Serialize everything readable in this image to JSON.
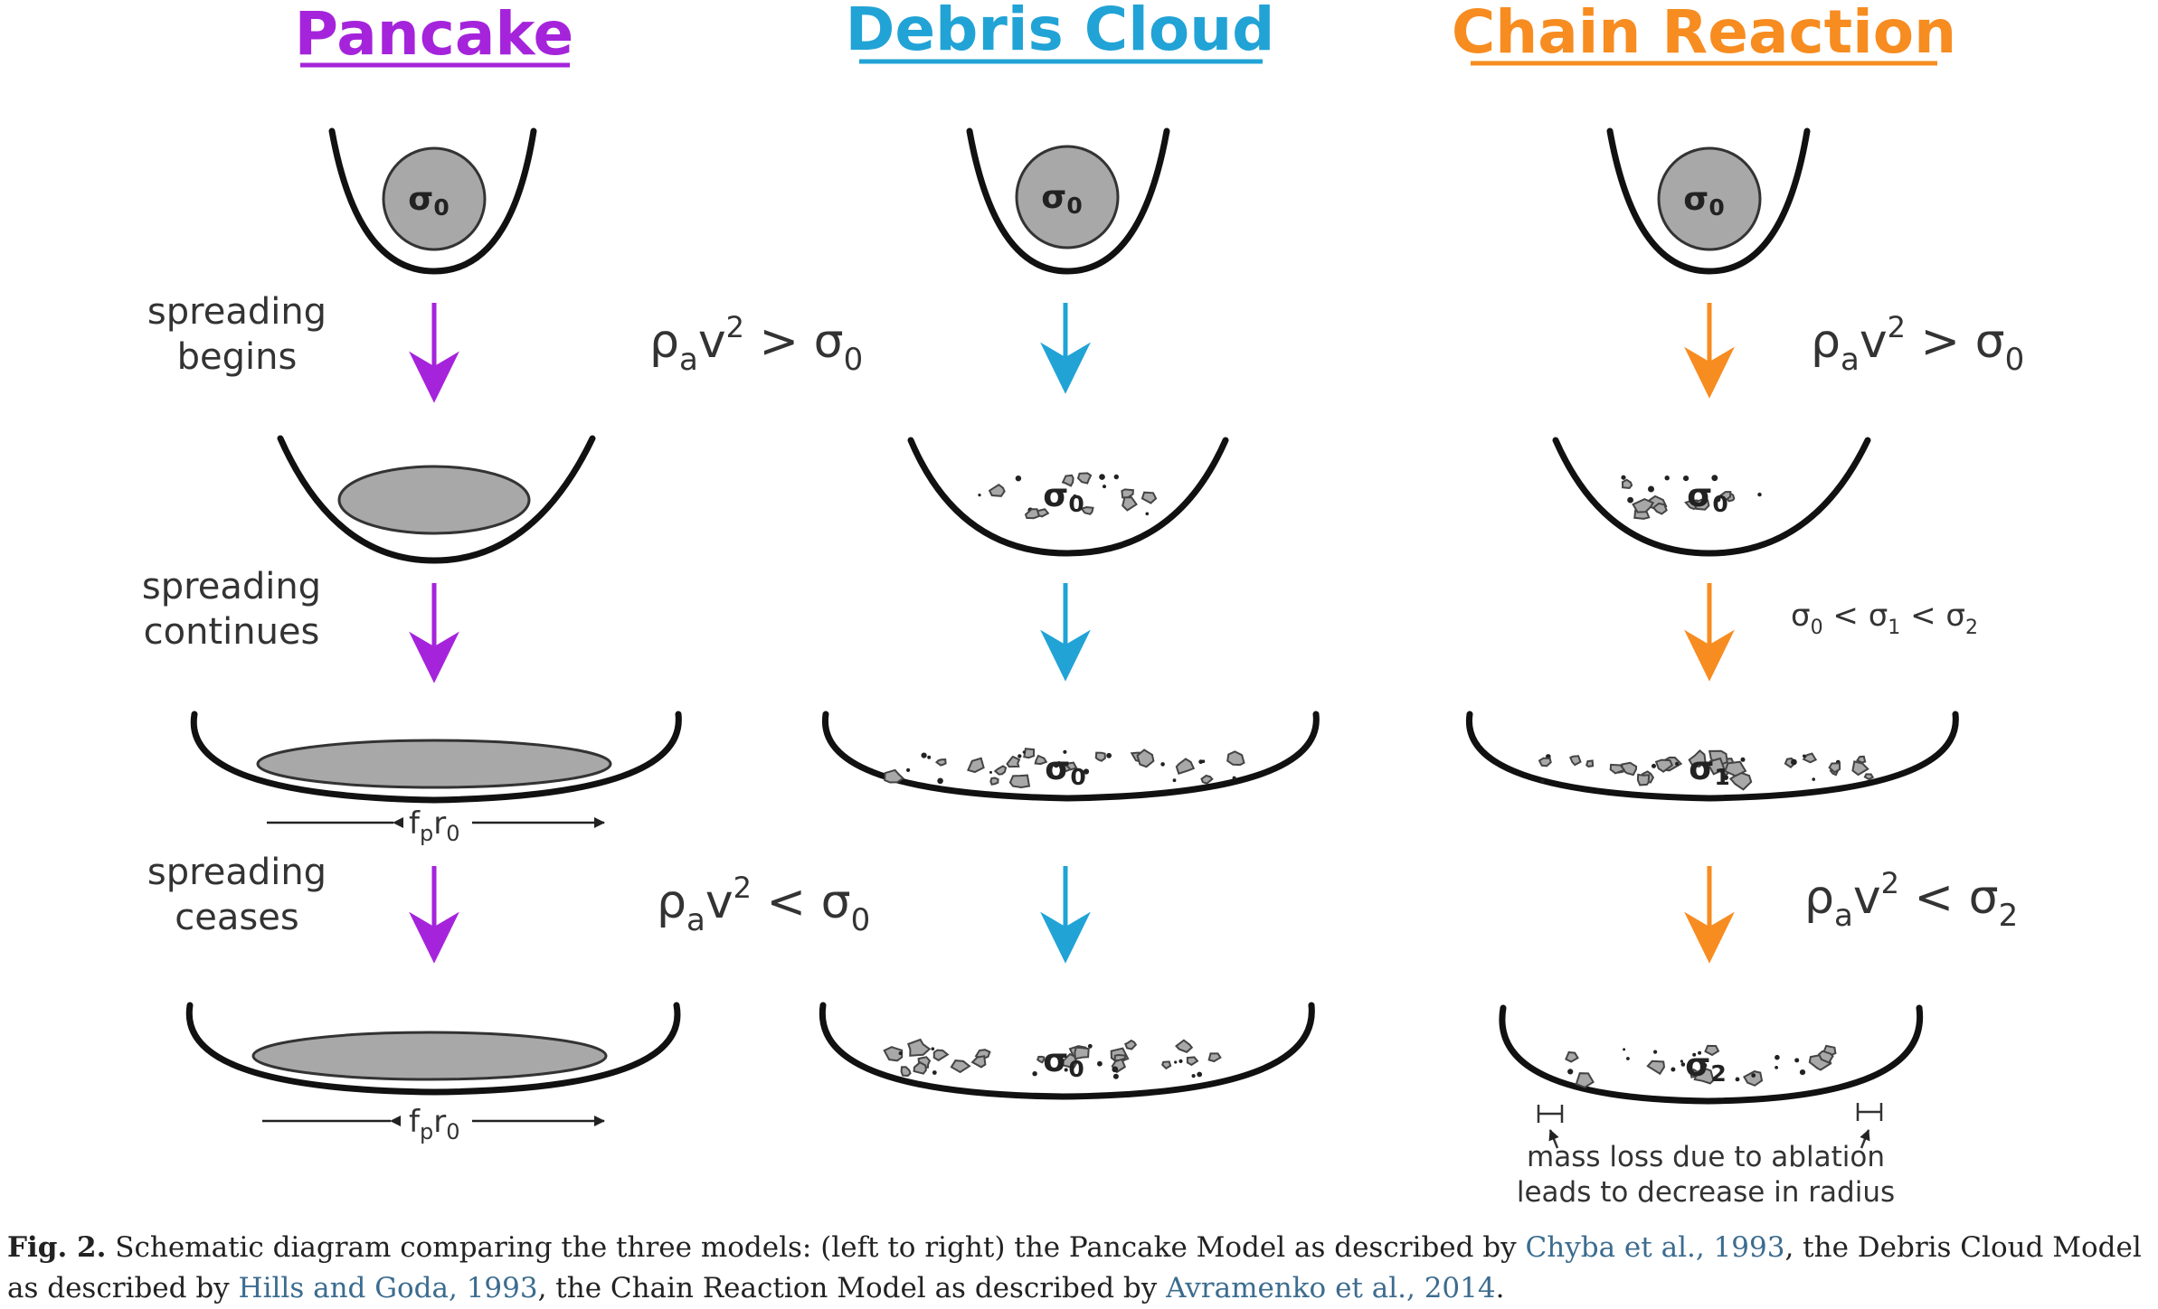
{
  "colors": {
    "pancake": "#a524db",
    "debris": "#21a3d6",
    "chain": "#f78c20",
    "reference_link": "#3c6c8f"
  },
  "columns": [
    {
      "title": "Pancake",
      "cond_begin": {
        "rho": "ρ",
        "a": "a",
        "v": "v",
        "exp": "2",
        "op": "&gt;",
        "sigma": "σ",
        "sub": "0"
      },
      "cond_end": {
        "rho": "ρ",
        "a": "a",
        "v": "v",
        "exp": "2",
        "op": "&lt;",
        "sigma": "σ",
        "sub": "0"
      },
      "sigma_labels": [
        {
          "s": "σ",
          "sub": "0"
        }
      ],
      "radius_label": {
        "f": "f",
        "p": "p",
        "r": "r",
        "sub": "0"
      },
      "stage_labels": [
        [
          "spreading",
          "begins"
        ],
        [
          "spreading",
          "continues"
        ],
        [
          "spreading",
          "ceases"
        ]
      ]
    },
    {
      "title": "Debris Cloud",
      "sigma_labels": [
        {
          "s": "σ",
          "sub": "0"
        },
        {
          "s": "σ",
          "sub": "0"
        },
        {
          "s": "σ",
          "sub": "0"
        },
        {
          "s": "σ",
          "sub": "0"
        }
      ]
    },
    {
      "title": "Chain Reaction",
      "cond_begin": {
        "rho": "ρ",
        "a": "a",
        "v": "v",
        "exp": "2",
        "op": "&gt;",
        "sigma": "σ",
        "sub": "0"
      },
      "cond_mid": {
        "s0": "σ",
        "sub0": "0",
        "op1": "&lt;",
        "s1": "σ",
        "sub1": "1",
        "op2": "&lt;",
        "s2": "σ",
        "sub2": "2"
      },
      "cond_end": {
        "rho": "ρ",
        "a": "a",
        "v": "v",
        "exp": "2",
        "op": "&lt;",
        "sigma": "σ",
        "sub": "2"
      },
      "sigma_labels": [
        {
          "s": "σ",
          "sub": "0"
        },
        {
          "s": "σ",
          "sub": "0"
        },
        {
          "s": "σ",
          "sub": "1"
        },
        {
          "s": "σ",
          "sub": "2"
        }
      ],
      "ablation_note": [
        "mass loss due to ablation",
        "leads to decrease in radius"
      ]
    }
  ],
  "caption": {
    "fig_label": "Fig. 2.",
    "text_1": " Schematic diagram comparing the three models: (left to right) the Pancake Model as described by ",
    "ref_1": "Chyba et al., 1993",
    "text_2": ", the Debris Cloud Model as described by ",
    "ref_2": "Hills and Goda, 1993",
    "text_3": ", the Chain Reaction Model as described by ",
    "ref_3": "Avramenko et al., 2014",
    "text_4": "."
  }
}
